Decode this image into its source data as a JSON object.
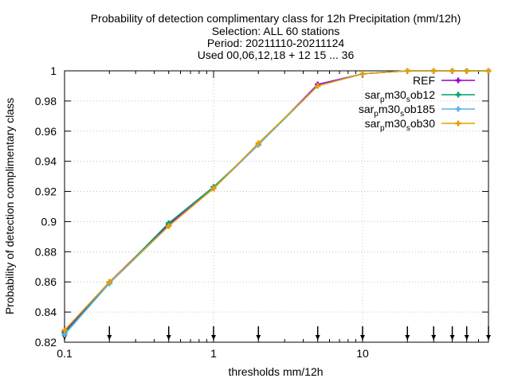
{
  "chart_data": {
    "type": "line",
    "title_lines": [
      "Probability of detection complimentary class  for 12h Precipitation (mm/12h)",
      "Selection: ALL     60 stations",
      "Period: 20211110-20211124",
      "Used 00,06,12,18 + 12 15 ... 36"
    ],
    "xlabel": "thresholds mm/12h",
    "ylabel": "Probability of detection complimentary class",
    "x_scale": "log",
    "xlim": [
      0.1,
      70
    ],
    "ylim": [
      0.82,
      1.0
    ],
    "y_ticks": [
      "0.82",
      "0.84",
      "0.86",
      "0.88",
      "0.9",
      "0.92",
      "0.94",
      "0.96",
      "0.98",
      "1"
    ],
    "x_ticks": [
      {
        "value": 0.1,
        "label": "0.1"
      },
      {
        "value": 1,
        "label": "1"
      },
      {
        "value": 10,
        "label": "10"
      }
    ],
    "threshold_markers": [
      0.1,
      0.2,
      0.5,
      1,
      2,
      5,
      10,
      20,
      30,
      40,
      50,
      70
    ],
    "x": [
      0.1,
      0.2,
      0.5,
      1,
      2,
      5,
      10,
      20,
      30,
      40,
      50,
      70
    ],
    "legend_position": "top-right",
    "series": [
      {
        "name": "REF",
        "label_main": "REF",
        "color": "#9400d3",
        "marker": "plus",
        "values": [
          0.827,
          0.86,
          0.898,
          0.922,
          0.951,
          0.991,
          0.998,
          1.0,
          1.0,
          1.0,
          1.0,
          1.0
        ]
      },
      {
        "name": "sar_pm30_sob12",
        "label_parts": [
          "sar",
          "p",
          "m30",
          "s",
          "ob12"
        ],
        "color": "#009e73",
        "marker": "plus",
        "values": [
          0.826,
          0.859,
          0.899,
          0.923,
          0.951,
          0.99,
          0.998,
          1.0,
          1.0,
          1.0,
          1.0,
          1.0
        ]
      },
      {
        "name": "sar_pm30_sob185",
        "label_parts": [
          "sar",
          "p",
          "m30",
          "s",
          "ob185"
        ],
        "color": "#56b4e9",
        "marker": "plus",
        "values": [
          0.825,
          0.859,
          0.897,
          0.922,
          0.951,
          0.99,
          0.998,
          1.0,
          1.0,
          1.0,
          1.0,
          1.0
        ]
      },
      {
        "name": "sar_pm30_sob30",
        "label_parts": [
          "sar",
          "p",
          "m30",
          "s",
          "ob30"
        ],
        "color": "#e69f00",
        "marker": "plus",
        "values": [
          0.828,
          0.86,
          0.897,
          0.922,
          0.952,
          0.99,
          0.998,
          1.0,
          1.0,
          1.0,
          1.0,
          1.0
        ]
      }
    ]
  }
}
